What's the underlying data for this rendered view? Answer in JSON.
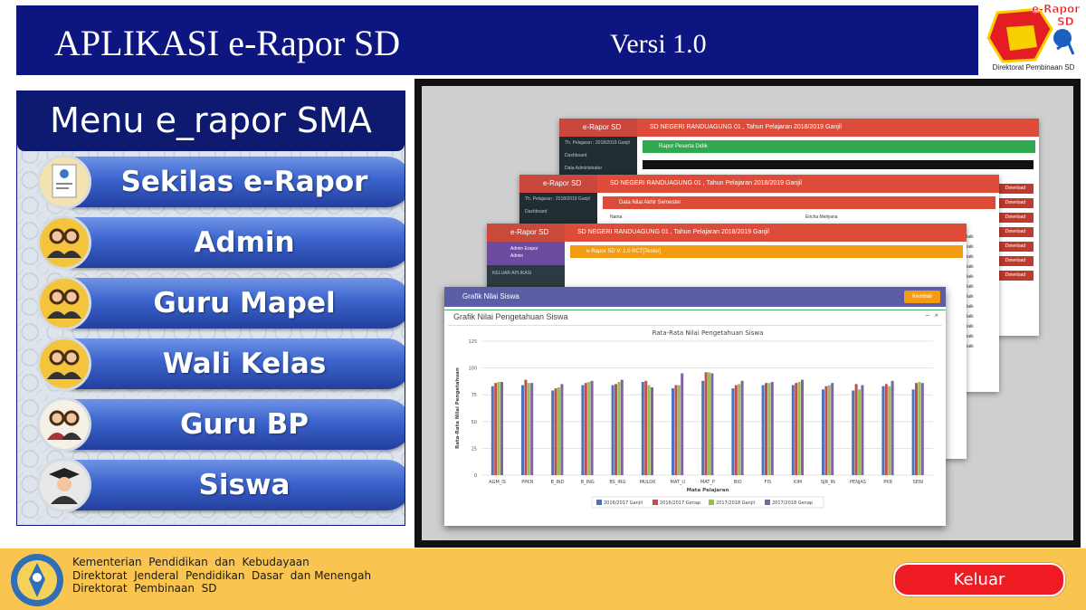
{
  "header": {
    "title": "APLIKASI e-Rapor SD",
    "version": "Versi 1.0",
    "logo_text_line1": "e-Rapor",
    "logo_text_line2": "SD",
    "logo_caption": "Direktorat Pembinaan SD"
  },
  "menu": {
    "title": "Menu e_rapor SMA",
    "items": [
      {
        "label": "Sekilas e-Rapor",
        "icon": "book-cover-icon"
      },
      {
        "label": "Admin",
        "icon": "users-couple-icon"
      },
      {
        "label": "Guru Mapel",
        "icon": "users-couple-icon"
      },
      {
        "label": "Wali Kelas",
        "icon": "users-couple-icon"
      },
      {
        "label": "Guru BP",
        "icon": "users-couple-icon"
      },
      {
        "label": "Siswa",
        "icon": "graduate-student-icon"
      }
    ]
  },
  "preview": {
    "brand": "e-Rapor SD",
    "school_line_1": "SD NEGERI RANDUAGUNG 01 , Tahun Pelajaran 2018/2019 Ganjil",
    "school_line_2": "SD NEGERI RANDUAGUNG 01 , Tahun Pelajaran 2018/2019 Ganjil",
    "school_line_3": "SD NEGERI RANDUAGUNG 01 , Tahun Pelajaran 2018/2019 Ganjil",
    "panel_1_title": "Rapor Peserta Didik",
    "panel_2_title": "Data Nilai Akhir Semester",
    "panel_3_title": "e-Rapor SD  V. 1.0 RCT[Tester]",
    "side_dashboard": "Dashboard",
    "side_admin": "Data Administrator",
    "side_period": "Th. Pelajaran : 2018/2019 Ganjil",
    "side_user": "Admin Erapor",
    "side_role": "Admin",
    "side_logout": "KELUAR APLIKASI",
    "col_nama": "Nama",
    "col_nama_value": "Ericha Meliyana",
    "baik": "Baik",
    "download": "Download",
    "chart_window_title": "Grafik Nilai Siswa",
    "kembali": "Kembali",
    "chart_card_title": "Grafik Nilai Pengetahuan Siswa",
    "minimize": "−",
    "close": "×"
  },
  "chart_data": {
    "type": "bar",
    "title": "Rata-Rata Nilai Pengetahuan Siswa",
    "xlabel": "Mata Pelajaran",
    "ylabel": "Rata-Rata Nilai Pengetahuan",
    "ylim": [
      0,
      125
    ],
    "yticks": [
      0,
      25,
      50,
      75,
      100,
      125
    ],
    "categories": [
      "AGM_IS",
      "PPKN",
      "B_IND",
      "B_ING",
      "BS_ING",
      "MULOK",
      "MAT_U",
      "MAT_P",
      "BIO",
      "FIS",
      "KIM",
      "SJR_IN",
      "PENJAS",
      "PKR",
      "SENI"
    ],
    "series": [
      {
        "name": "2016/2017 Ganjil",
        "color": "#4e73b8",
        "values": [
          83,
          84,
          79,
          84,
          84,
          87,
          81,
          88,
          81,
          84,
          84,
          80,
          79,
          83,
          80
        ]
      },
      {
        "name": "2016/2017 Genap",
        "color": "#c0504d",
        "values": [
          86,
          89,
          81,
          86,
          85,
          88,
          84,
          96,
          84,
          86,
          86,
          83,
          85,
          85,
          86
        ]
      },
      {
        "name": "2017/2018 Ganjil",
        "color": "#9bbb59",
        "values": [
          87,
          86,
          82,
          87,
          87,
          84,
          84,
          96,
          85,
          86,
          87,
          84,
          80,
          83,
          87
        ]
      },
      {
        "name": "2017/2018 Genap",
        "color": "#8064a2",
        "values": [
          87,
          86,
          85,
          88,
          89,
          82,
          95,
          95,
          88,
          87,
          89,
          86,
          84,
          88,
          86
        ]
      }
    ],
    "legend_position": "bottom",
    "grid": true
  },
  "footer": {
    "line1": "Kementerian  Pendidikan  dan  Kebudayaan",
    "line2": "Direktorat  Jenderal  Pendidikan  Dasar  dan Menengah",
    "line3": "Direktorat  Pembinaan  SD",
    "logout_label": "Keluar"
  }
}
